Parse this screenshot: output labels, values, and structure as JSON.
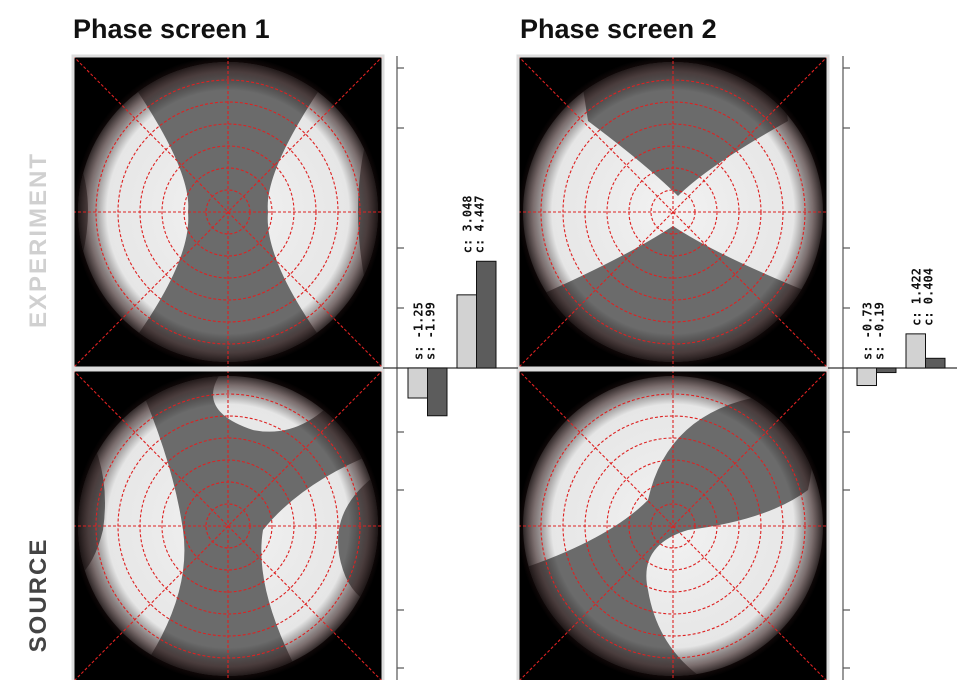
{
  "titles": [
    "Phase screen 1",
    "Phase screen 2"
  ],
  "row_labels": [
    "EXPERIMENT",
    "SOURCE"
  ],
  "chart_data": [
    {
      "type": "bar",
      "values": [
        -1.25,
        -1.99,
        3.048,
        4.447
      ],
      "value_labels": [
        "s: -1.25",
        "s: -1.99",
        "c: 3.048",
        "c: 4.447"
      ],
      "colors": [
        "#d2d2d2",
        "#5c5c5c",
        "#d2d2d2",
        "#5c5c5c"
      ],
      "ylim": [
        -13,
        13
      ]
    },
    {
      "type": "bar",
      "values": [
        -0.73,
        -0.19,
        1.422,
        0.404
      ],
      "value_labels": [
        "s: -0.73",
        "s: -0.19",
        "c: 1.422",
        "c: 0.404"
      ],
      "colors": [
        "#d2d2d2",
        "#5c5c5c",
        "#d2d2d2",
        "#5c5c5c"
      ],
      "ylim": [
        -13,
        13
      ]
    }
  ]
}
